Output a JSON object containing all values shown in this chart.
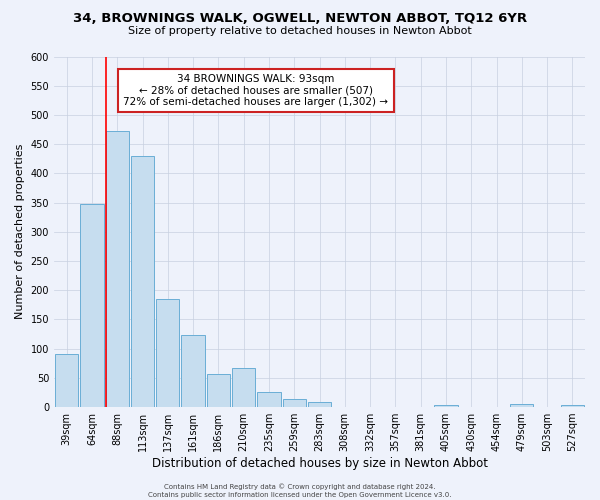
{
  "title1": "34, BROWNINGS WALK, OGWELL, NEWTON ABBOT, TQ12 6YR",
  "title2": "Size of property relative to detached houses in Newton Abbot",
  "xlabel": "Distribution of detached houses by size in Newton Abbot",
  "ylabel": "Number of detached properties",
  "bar_labels": [
    "39sqm",
    "64sqm",
    "88sqm",
    "113sqm",
    "137sqm",
    "161sqm",
    "186sqm",
    "210sqm",
    "235sqm",
    "259sqm",
    "283sqm",
    "308sqm",
    "332sqm",
    "357sqm",
    "381sqm",
    "405sqm",
    "430sqm",
    "454sqm",
    "479sqm",
    "503sqm",
    "527sqm"
  ],
  "bar_heights": [
    90,
    348,
    473,
    430,
    185,
    124,
    57,
    67,
    25,
    13,
    8,
    0,
    0,
    0,
    0,
    3,
    0,
    0,
    5,
    0,
    3
  ],
  "bar_color": "#c6ddef",
  "bar_edge_color": "#6aaed6",
  "red_line_index": 2,
  "ylim": [
    0,
    600
  ],
  "yticks": [
    0,
    50,
    100,
    150,
    200,
    250,
    300,
    350,
    400,
    450,
    500,
    550,
    600
  ],
  "annotation_title": "34 BROWNINGS WALK: 93sqm",
  "annotation_line1": "← 28% of detached houses are smaller (507)",
  "annotation_line2": "72% of semi-detached houses are larger (1,302) →",
  "footer1": "Contains HM Land Registry data © Crown copyright and database right 2024.",
  "footer2": "Contains public sector information licensed under the Open Government Licence v3.0.",
  "bg_color": "#eef2fb",
  "plot_bg_color": "#eef2fb",
  "grid_color": "#c8d0e0",
  "title1_fontsize": 9.5,
  "title2_fontsize": 8,
  "xlabel_fontsize": 8.5,
  "ylabel_fontsize": 8,
  "tick_fontsize": 7,
  "ann_fontsize": 7.5,
  "footer_fontsize": 5
}
